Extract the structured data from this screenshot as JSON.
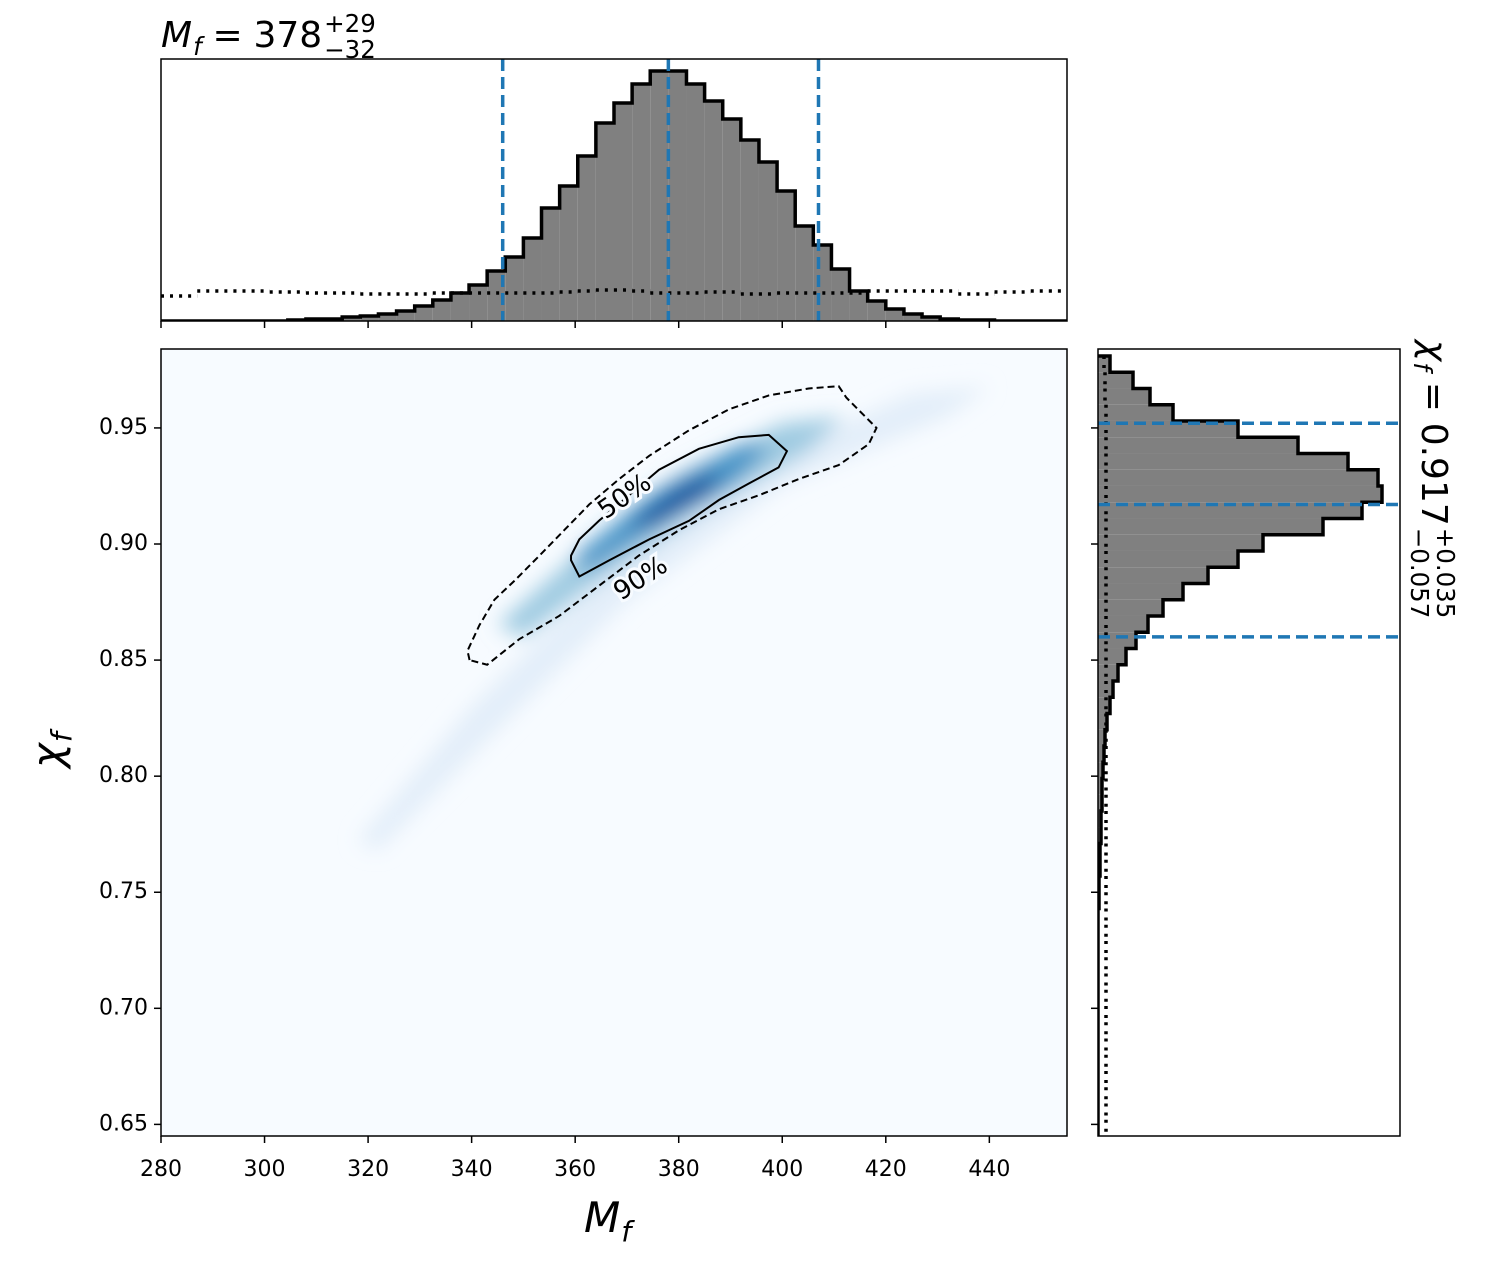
{
  "chart_data": [
    {
      "type": "histogram",
      "orientation": "vertical",
      "title": {
        "symbol": "M",
        "subscript": "f",
        "equals": "=",
        "median": "378",
        "upper": "+29",
        "lower": "−32"
      },
      "bins": [
        280,
        283.5,
        287,
        290.5,
        294,
        297.5,
        301,
        304.5,
        308,
        311.5,
        315,
        318.5,
        322,
        325.5,
        329,
        332.5,
        336,
        339.5,
        343,
        346.5,
        350,
        353.5,
        357,
        360.5,
        364,
        367.5,
        371,
        374.5,
        378,
        381.5,
        385,
        388.5,
        392,
        395.5,
        399,
        402.5,
        406,
        409.5,
        413,
        416.5,
        420,
        423.5,
        427,
        430.5,
        434,
        437.5,
        441,
        444.5,
        448,
        451.5,
        455
      ],
      "xlim": [
        280,
        455
      ],
      "ylim": [
        0,
        262
      ],
      "series": [
        {
          "color": "#808080",
          "edgecolor": "#000000",
          "values": [
            0,
            0,
            0,
            0,
            0,
            0,
            0,
            1,
            2,
            2,
            4,
            5,
            7,
            10,
            15,
            21,
            28,
            36,
            50,
            64,
            83,
            113,
            135,
            165,
            198,
            218,
            237,
            250,
            250,
            237,
            220,
            202,
            181,
            159,
            130,
            95,
            76,
            52,
            30,
            20,
            12,
            7,
            4,
            2,
            1,
            1,
            0,
            0,
            0,
            0
          ]
        },
        {
          "linestyle": "dotted",
          "color": "#000000",
          "values": [
            25,
            25,
            30,
            30,
            30,
            30,
            29,
            29,
            28,
            28,
            28,
            27,
            27,
            27,
            27,
            28,
            28,
            28,
            28,
            28,
            28,
            28,
            29,
            30,
            31,
            31,
            30,
            28,
            28,
            28,
            29,
            29,
            27,
            27,
            28,
            28,
            28,
            28,
            28,
            30,
            30,
            30,
            30,
            30,
            27,
            27,
            29,
            29,
            30,
            30
          ]
        }
      ],
      "quantiles": [
        346,
        378,
        407
      ],
      "quantile_color": "#1f77b4"
    },
    {
      "type": "density2d",
      "xlabel": {
        "symbol": "M",
        "subscript": "f"
      },
      "ylabel": {
        "symbol": "χ",
        "subscript": "f"
      },
      "xlim": [
        280,
        455
      ],
      "ylim": [
        0.645,
        0.984
      ],
      "xticks": [
        280,
        300,
        320,
        340,
        360,
        380,
        400,
        420,
        440
      ],
      "yticks": [
        0.65,
        {
          "value": 0.7,
          "label": "0.70"
        },
        0.75,
        {
          "value": 0.8,
          "label": "0.80"
        },
        0.85,
        {
          "value": 0.9,
          "label": "0.90"
        },
        0.95
      ],
      "background": "#f7fbff",
      "density": [
        {
          "color": "#e3eef9",
          "x": [
            318,
            340,
            365,
            395,
            425,
            440,
            432,
            400,
            370,
            345,
            322
          ],
          "y": [
            0.772,
            0.83,
            0.885,
            0.935,
            0.965,
            0.968,
            0.955,
            0.925,
            0.875,
            0.82,
            0.768
          ]
        },
        {
          "color": "#9ecae1",
          "x": [
            345,
            360,
            380,
            400,
            412,
            405,
            385,
            365,
            350
          ],
          "y": [
            0.865,
            0.895,
            0.93,
            0.952,
            0.955,
            0.94,
            0.915,
            0.885,
            0.86
          ]
        },
        {
          "color": "#4292c6",
          "x": [
            360,
            375,
            392,
            398,
            390,
            372,
            362
          ],
          "y": [
            0.895,
            0.922,
            0.943,
            0.942,
            0.925,
            0.902,
            0.888
          ]
        },
        {
          "color": "#08519c",
          "x": [
            370,
            380,
            388,
            386,
            375
          ],
          "y": [
            0.908,
            0.925,
            0.932,
            0.922,
            0.908
          ]
        }
      ],
      "contours": [
        {
          "label": "50%",
          "linestyle": "solid",
          "color": "#000000",
          "x": [
            359.2,
            360.8,
            364.6,
            370.4,
            376.2,
            383.9,
            391.6,
            397.4,
            400.9,
            399.3,
            393.5,
            387.8,
            382.0,
            374.3,
            366.6,
            360.8,
            359.2
          ],
          "y": [
            0.895,
            0.902,
            0.91,
            0.921,
            0.932,
            0.941,
            0.946,
            0.947,
            0.94,
            0.933,
            0.926,
            0.919,
            0.91,
            0.902,
            0.893,
            0.886,
            0.893
          ]
        },
        {
          "label": "90%",
          "linestyle": "dashed",
          "color": "#000000",
          "x": [
            339.6,
            339.2,
            341.5,
            344.4,
            348.2,
            353.1,
            357.9,
            362.7,
            368.5,
            374.3,
            382.0,
            389.7,
            397.4,
            405.1,
            410.9,
            412.4,
            418.2,
            416.7,
            410.9,
            403.2,
            395.5,
            387.8,
            380.1,
            372.3,
            364.6,
            356.9,
            349.2,
            343.0,
            339.6
          ],
          "y": [
            0.85,
            0.854,
            0.865,
            0.876,
            0.884,
            0.895,
            0.906,
            0.917,
            0.928,
            0.938,
            0.949,
            0.958,
            0.964,
            0.967,
            0.968,
            0.963,
            0.95,
            0.943,
            0.934,
            0.928,
            0.921,
            0.915,
            0.906,
            0.895,
            0.882,
            0.869,
            0.859,
            0.848,
            0.85
          ]
        }
      ]
    },
    {
      "type": "histogram",
      "orientation": "horizontal",
      "title": {
        "symbol": "χ",
        "subscript": "f",
        "equals": "=",
        "median": "0.917",
        "upper": "+0.035",
        "lower": "−0.057"
      },
      "bins": [
        0.645,
        0.652,
        0.659,
        0.666,
        0.673,
        0.68,
        0.687,
        0.694,
        0.701,
        0.708,
        0.715,
        0.722,
        0.729,
        0.736,
        0.743,
        0.75,
        0.757,
        0.764,
        0.771,
        0.778,
        0.785,
        0.792,
        0.799,
        0.806,
        0.813,
        0.82,
        0.827,
        0.834,
        0.841,
        0.848,
        0.855,
        0.862,
        0.869,
        0.876,
        0.883,
        0.89,
        0.897,
        0.904,
        0.911,
        0.918,
        0.925,
        0.932,
        0.939,
        0.946,
        0.953,
        0.96,
        0.967,
        0.974,
        0.981
      ],
      "xlim": [
        0,
        302
      ],
      "ylim": [
        0.645,
        0.984
      ],
      "series": [
        {
          "color": "#808080",
          "edgecolor": "#000000",
          "values": [
            0,
            0,
            0,
            0,
            0,
            0,
            0,
            0,
            0,
            0,
            0,
            0,
            0,
            0,
            1,
            1,
            2,
            2,
            3,
            3,
            4,
            4,
            5,
            6,
            7,
            9,
            12,
            15,
            20,
            28,
            38,
            50,
            65,
            85,
            110,
            140,
            165,
            225,
            264,
            284,
            280,
            250,
            200,
            140,
            75,
            52,
            35,
            12
          ]
        },
        {
          "linestyle": "dotted",
          "color": "#000000",
          "values": [
            8,
            8,
            8,
            8,
            8,
            8,
            8,
            8,
            8,
            8,
            8,
            8,
            8,
            8,
            8,
            8,
            8,
            8,
            8,
            8,
            8,
            8,
            8,
            8,
            8,
            8,
            8,
            8,
            8,
            8,
            8,
            8,
            8,
            8,
            8,
            8,
            8,
            8,
            8,
            8,
            8,
            8,
            8,
            8,
            8,
            7,
            7,
            6
          ]
        }
      ],
      "quantiles": [
        0.86,
        0.917,
        0.952
      ],
      "quantile_color": "#1f77b4"
    }
  ]
}
